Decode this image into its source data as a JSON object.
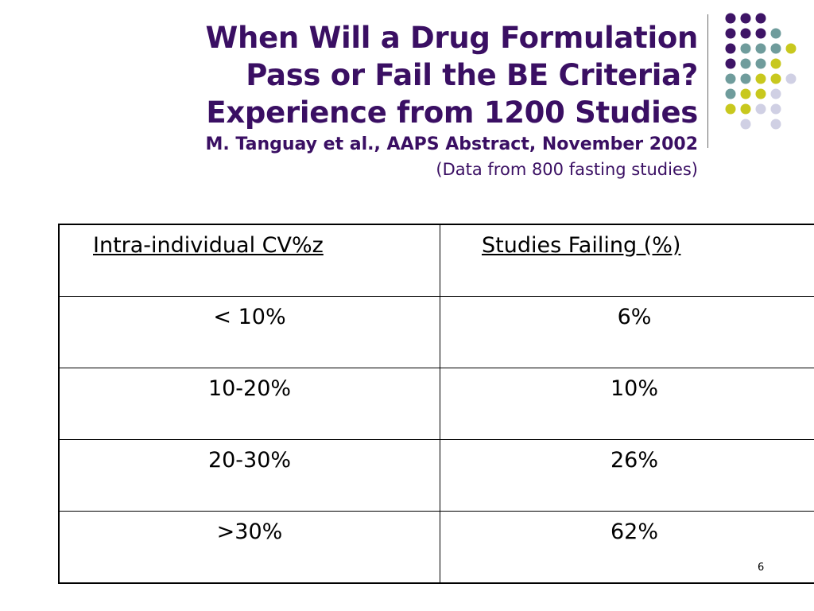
{
  "title": {
    "line1": "When Will a Drug Formulation",
    "line2": "Pass or Fail the BE Criteria?",
    "line3": "Experience from 1200 Studies",
    "subtitle": "M. Tanguay et al., AAPS Abstract, November 2002",
    "note": "(Data from 800 fasting studies)"
  },
  "table": {
    "headers": [
      "Intra-individual CV%z",
      "Studies Failing (%)"
    ],
    "rows": [
      [
        "< 10%",
        "6%"
      ],
      [
        "10-20%",
        "10%"
      ],
      [
        "20-30%",
        "26%"
      ],
      [
        ">30%",
        "62%"
      ]
    ]
  },
  "page_number": "6",
  "colors": {
    "title": "#3a0f63",
    "dot_purple": "#3e1466",
    "dot_teal": "#6f9c9c",
    "dot_yellow": "#c8c81e",
    "dot_lavender": "#d0d0e4"
  }
}
